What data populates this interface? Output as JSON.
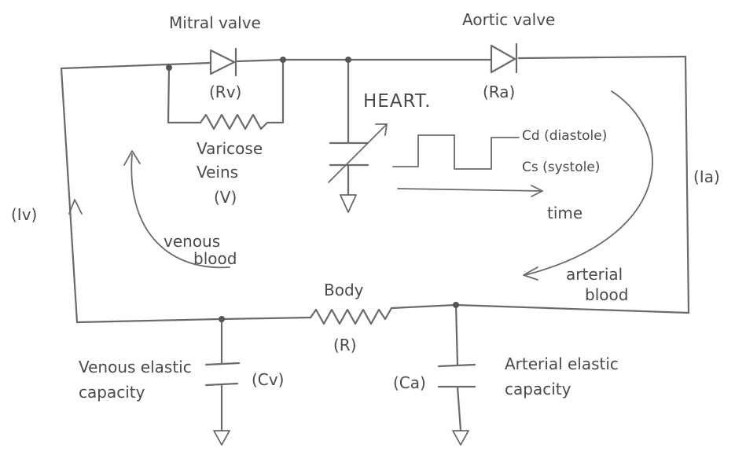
{
  "labels": {
    "mitral_valve": "Mitral valve",
    "aortic_valve": "Aortic valve",
    "rv": "(Rv)",
    "ra": "(Ra)",
    "heart": "HEART.",
    "varicose_1": "Varicose",
    "varicose_2": "Veins",
    "varicose_3": "(V)",
    "cd": "Cd (diastole)",
    "cs": "Cs (systole)",
    "time": "time",
    "ia": "(Ia)",
    "iv": "(Iv)",
    "venous_blood_1": "venous",
    "venous_blood_2": "blood",
    "arterial_blood_1": "arterial",
    "arterial_blood_2": "blood",
    "body": "Body",
    "r": "(R)",
    "venous_cap_1": "Venous elastic",
    "venous_cap_2": "capacity",
    "cv": "(Cv)",
    "ca": "(Ca)",
    "arterial_cap_1": "Arterial elastic",
    "arterial_cap_2": "capacity"
  },
  "colors": {
    "ink": "#6a6a6a",
    "text": "#4a4a4a",
    "background": "#ffffff"
  }
}
